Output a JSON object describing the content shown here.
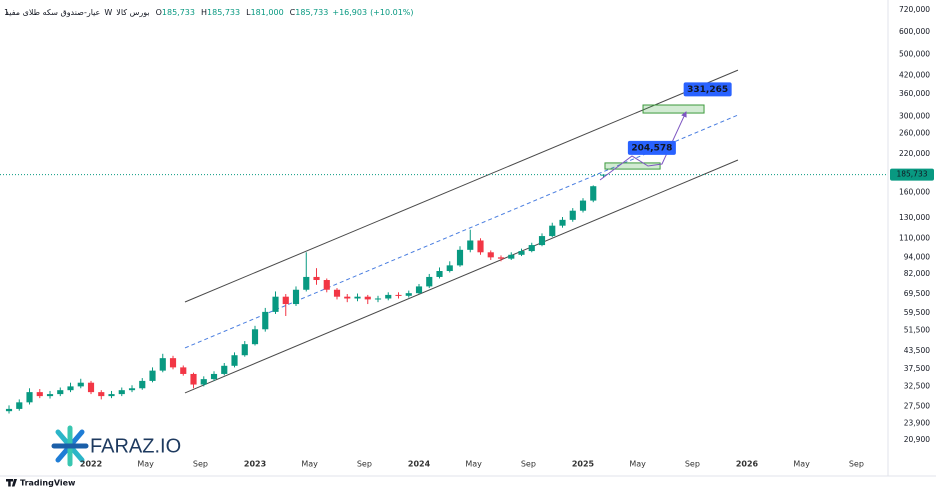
{
  "chart_data": {
    "type": "candlestick",
    "symbol": "عیار-صندوق سکه طلای مفید",
    "interval": "1W",
    "exchange": "بورس کالا",
    "legend_values": [
      {
        "key": "O",
        "value": 185733,
        "label": "185,733"
      },
      {
        "key": "H",
        "value": 185733,
        "label": "185,733"
      },
      {
        "key": "L",
        "value": 181000,
        "label": "181,000"
      },
      {
        "key": "C",
        "value": 185733,
        "label": "185,733"
      }
    ],
    "change": {
      "value": 16903,
      "label": "+16,903"
    },
    "change_pct": {
      "value": 10.01,
      "label": "(+10.01%)"
    },
    "log_scale": true,
    "grid": false,
    "up_color": "#089981",
    "down_color": "#f23645",
    "xlim": [
      2021.445,
      2026.811
    ],
    "ylim": [
      17730,
      781800
    ],
    "xticks": [
      2022,
      {
        "value": 2022.333,
        "label": "May"
      },
      {
        "value": 2022.667,
        "label": "Sep"
      },
      2023,
      {
        "value": 2023.333,
        "label": "May"
      },
      {
        "value": 2023.667,
        "label": "Sep"
      },
      2024,
      {
        "value": 2024.333,
        "label": "May"
      },
      {
        "value": 2024.667,
        "label": "Sep"
      },
      2025,
      {
        "value": 2025.333,
        "label": "May"
      },
      {
        "value": 2025.667,
        "label": "Sep"
      },
      2026,
      {
        "value": 2026.333,
        "label": "May"
      },
      {
        "value": 2026.667,
        "label": "Sep"
      }
    ],
    "yticks": [
      {
        "value": 720000,
        "label": "720,000"
      },
      {
        "value": 600000,
        "label": "600,000"
      },
      {
        "value": 500000,
        "label": "500,000"
      },
      {
        "value": 420000,
        "label": "420,000"
      },
      {
        "value": 360000,
        "label": "360,000"
      },
      {
        "value": 300000,
        "label": "300,000"
      },
      {
        "value": 260000,
        "label": "260,000"
      },
      {
        "value": 220000,
        "label": "220,000"
      },
      {
        "value": 160000,
        "label": "160,000"
      },
      {
        "value": 130000,
        "label": "130,000"
      },
      {
        "value": 110000,
        "label": "110,000"
      },
      {
        "value": 94000,
        "label": "94,000"
      },
      {
        "value": 82000,
        "label": "82,000"
      },
      {
        "value": 69500,
        "label": "69,500"
      },
      {
        "value": 59500,
        "label": "59,500"
      },
      {
        "value": 51500,
        "label": "51,500"
      },
      {
        "value": 43500,
        "label": "43,500"
      },
      {
        "value": 37500,
        "label": "37,500"
      },
      {
        "value": 32500,
        "label": "32,500"
      },
      {
        "value": 27500,
        "label": "27,500"
      },
      {
        "value": 23900,
        "label": "23,900"
      },
      {
        "value": 20900,
        "label": "20,900"
      }
    ],
    "candles": {
      "x": [
        2021.5,
        2021.5625,
        2021.625,
        2021.6875,
        2021.75,
        2021.8125,
        2021.875,
        2021.9375,
        2022,
        2022.0625,
        2022.125,
        2022.1875,
        2022.25,
        2022.3125,
        2022.375,
        2022.4375,
        2022.5,
        2022.5625,
        2022.625,
        2022.6875,
        2022.75,
        2022.8125,
        2022.875,
        2022.9375,
        2023,
        2023.0625,
        2023.125,
        2023.1875,
        2023.25,
        2023.3125,
        2023.375,
        2023.4375,
        2023.5,
        2023.5625,
        2023.625,
        2023.6875,
        2023.75,
        2023.8125,
        2023.875,
        2023.9375,
        2024,
        2024.0625,
        2024.125,
        2024.1875,
        2024.25,
        2024.3125,
        2024.375,
        2024.4375,
        2024.5,
        2024.5625,
        2024.625,
        2024.6875,
        2024.75,
        2024.8125,
        2024.875,
        2024.9375,
        2025,
        2025.0625,
        2025.125
      ],
      "open": [
        26500,
        27000,
        28500,
        31000,
        30000,
        30500,
        31500,
        32500,
        33500,
        31000,
        30000,
        30500,
        31500,
        32000,
        34000,
        37000,
        41000,
        38000,
        36000,
        33000,
        34500,
        36000,
        38500,
        42000,
        46000,
        52000,
        60000,
        68000,
        64000,
        72000,
        80000,
        78000,
        72000,
        68000,
        67000,
        68000,
        66500,
        67000,
        69000,
        68500,
        70000,
        74000,
        80000,
        84000,
        88000,
        100000,
        108000,
        98000,
        94000,
        93000,
        96000,
        99000,
        104000,
        112000,
        122000,
        128000,
        138000,
        150000,
        185733
      ],
      "high": [
        27800,
        29200,
        32000,
        31800,
        31300,
        32200,
        33500,
        34600,
        34000,
        31500,
        31300,
        32200,
        32800,
        34800,
        38000,
        42500,
        41800,
        38600,
        36400,
        35300,
        36800,
        39400,
        43000,
        47200,
        53500,
        62000,
        71000,
        69500,
        74000,
        98000,
        86000,
        79000,
        73000,
        69500,
        69800,
        69000,
        68500,
        70500,
        70500,
        71500,
        75500,
        82000,
        86500,
        91000,
        103000,
        118000,
        110000,
        99500,
        95500,
        98000,
        101000,
        106000,
        114500,
        125000,
        131000,
        141000,
        153000,
        170000,
        185733
      ],
      "low": [
        26000,
        26600,
        28000,
        29500,
        29400,
        30000,
        31000,
        32000,
        30500,
        29200,
        29500,
        30000,
        31000,
        31600,
        33600,
        36500,
        37400,
        35500,
        32000,
        32500,
        34000,
        35600,
        38000,
        41500,
        45500,
        51000,
        59000,
        58000,
        63000,
        71000,
        75000,
        70500,
        66500,
        65000,
        65500,
        64000,
        65000,
        66000,
        67000,
        67500,
        69500,
        73000,
        79000,
        83000,
        87000,
        98000,
        96000,
        92000,
        91000,
        92000,
        95000,
        98000,
        103000,
        111000,
        120000,
        126000,
        136000,
        148000,
        181000
      ],
      "close": [
        27000,
        28500,
        31000,
        30000,
        30500,
        31500,
        32500,
        33500,
        31000,
        30000,
        30500,
        31500,
        32000,
        34000,
        37000,
        41000,
        38000,
        36000,
        33000,
        34500,
        36000,
        38500,
        42000,
        46000,
        52000,
        60000,
        68000,
        64000,
        72000,
        80000,
        78000,
        72000,
        68000,
        67000,
        68000,
        66500,
        67000,
        69000,
        68500,
        70000,
        74000,
        80000,
        84000,
        88000,
        100000,
        108000,
        98000,
        94000,
        93000,
        96000,
        99000,
        104000,
        112000,
        122000,
        128000,
        138000,
        150000,
        168830,
        185733
      ]
    },
    "channel_lines": [
      {
        "x": [
          2022.573,
          2025.945
        ],
        "y": [
          65100,
          439000
        ],
        "style": "solid",
        "color": "#4a4a4a"
      },
      {
        "x": [
          2022.573,
          2025.945
        ],
        "y": [
          44600,
          303400
        ],
        "style": "dashed",
        "color": "#4a7ee0"
      },
      {
        "x": [
          2022.573,
          2025.945
        ],
        "y": [
          30800,
          209500
        ],
        "style": "solid",
        "color": "#4a4a4a"
      }
    ],
    "target_boxes": [
      {
        "x": [
          2025.134,
          2025.47
        ],
        "y": [
          194400,
          204500
        ]
      },
      {
        "x": [
          2025.366,
          2025.738
        ],
        "y": [
          308300,
          329400
        ]
      }
    ],
    "target_labels": [
      {
        "x": 2025.42,
        "value": 204578,
        "label": "204,578"
      },
      {
        "x": 2025.76,
        "value": 331265,
        "label": "331,265"
      }
    ],
    "last_price": {
      "value": 185733,
      "label": "185,733",
      "color": "#089981"
    },
    "watermark": "FARAZ.IO",
    "footer": "TradingView"
  }
}
